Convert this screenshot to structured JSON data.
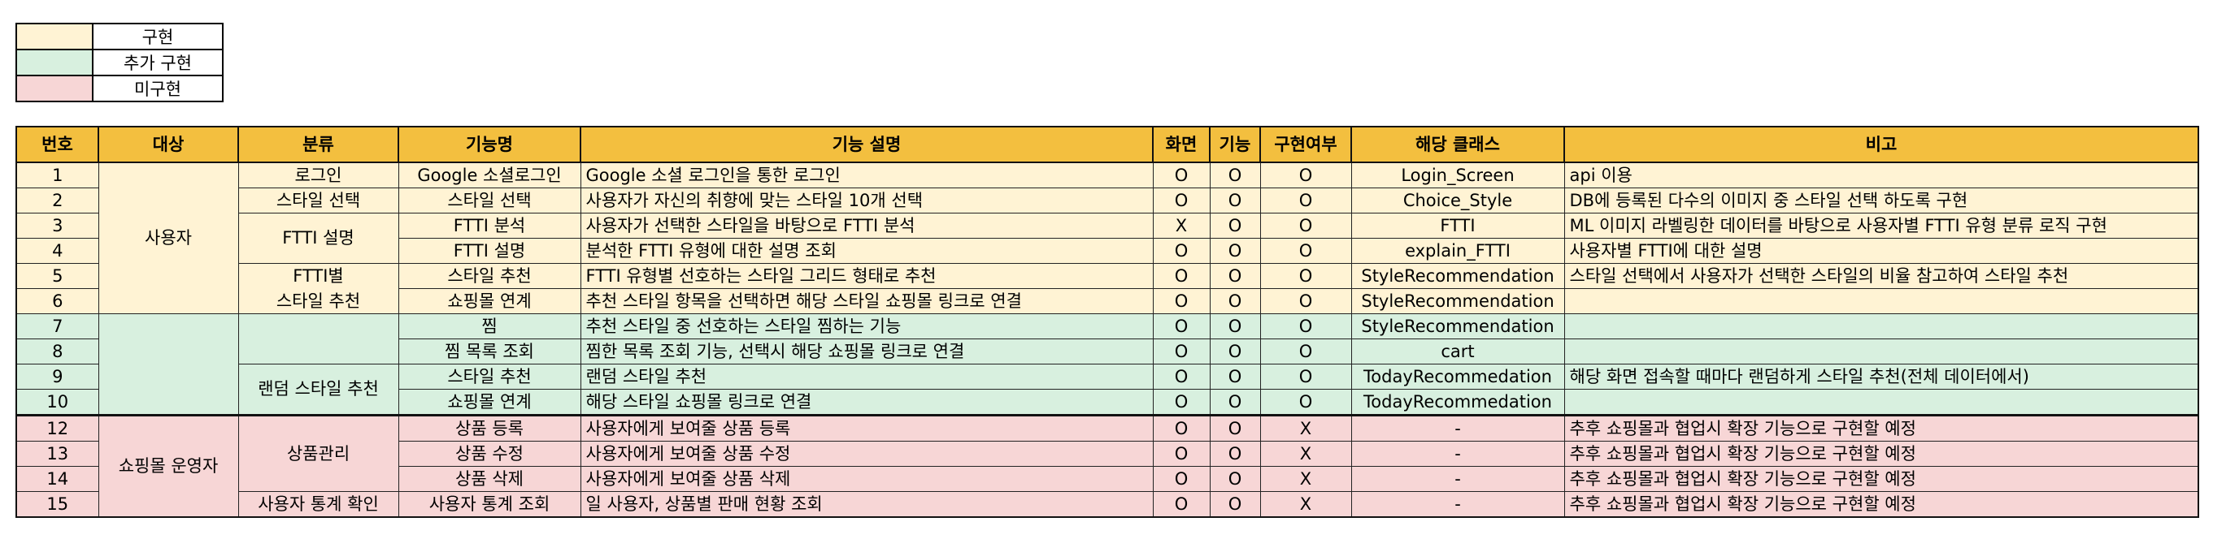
{
  "legend": {
    "items": [
      {
        "label": "구현",
        "color": "#fff3d4"
      },
      {
        "label": "추가 구현",
        "color": "#d8f0df"
      },
      {
        "label": "미구현",
        "color": "#f7d6d6"
      }
    ]
  },
  "colors": {
    "header": "#f3bf3f",
    "implemented": "#fff3d4",
    "added": "#d8f0df",
    "not_implemented": "#f7d6d6"
  },
  "table": {
    "headers": [
      "번호",
      "대상",
      "분류",
      "기능명",
      "기능 설명",
      "화면",
      "기능",
      "구현여부",
      "해당 클래스",
      "비고"
    ],
    "target": {
      "user": "사용자",
      "shop": "쇼핑몰 운영자"
    },
    "category": {
      "fttiDesc": "FTTI 설명",
      "fttiRec1": "FTTI별",
      "fttiRec2": "스타일 추천",
      "random": "랜덤 스타일 추천",
      "product": "상품관리",
      "stats": "사용자 통계 확인"
    },
    "rows": [
      {
        "no": "1",
        "cat": "로그인",
        "name": "Google 소셜로그인",
        "desc": "Google 소셜 로그인을 통한 로그인",
        "screen": "O",
        "func": "O",
        "impl": "O",
        "cls": "Login_Screen",
        "note": "api 이용"
      },
      {
        "no": "2",
        "cat": "스타일 선택",
        "name": "스타일 선택",
        "desc": "사용자가 자신의 취향에 맞는 스타일 10개 선택",
        "screen": "O",
        "func": "O",
        "impl": "O",
        "cls": "Choice_Style",
        "note": "DB에 등록된 다수의 이미지 중 스타일 선택 하도록 구현"
      },
      {
        "no": "3",
        "name": "FTTI 분석",
        "desc": "사용자가 선택한 스타일을 바탕으로 FTTI 분석",
        "screen": "X",
        "func": "O",
        "impl": "O",
        "cls": "FTTI",
        "note": "ML 이미지 라벨링한 데이터를 바탕으로 사용자별 FTTI 유형 분류 로직 구현"
      },
      {
        "no": "4",
        "name": "FTTI 설명",
        "desc": "분석한 FTTI 유형에 대한 설명 조회",
        "screen": "O",
        "func": "O",
        "impl": "O",
        "cls": "explain_FTTI",
        "note": "사용자별 FTTI에 대한 설명"
      },
      {
        "no": "5",
        "name": "스타일 추천",
        "desc": "FTTI 유형별 선호하는 스타일 그리드 형태로 추천",
        "screen": "O",
        "func": "O",
        "impl": "O",
        "cls": "StyleRecommendation",
        "note": "스타일 선택에서 사용자가 선택한 스타일의 비율 참고하여 스타일 추천"
      },
      {
        "no": "6",
        "name": "쇼핑몰 연계",
        "desc": "추천 스타일 항목을 선택하면 해당 스타일 쇼핑몰 링크로 연결",
        "screen": "O",
        "func": "O",
        "impl": "O",
        "cls": "StyleRecommendation",
        "note": ""
      },
      {
        "no": "7",
        "name": "찜",
        "desc": "추천 스타일 중 선호하는 스타일 찜하는 기능",
        "screen": "O",
        "func": "O",
        "impl": "O",
        "cls": "StyleRecommendation",
        "note": ""
      },
      {
        "no": "8",
        "name": "찜 목록 조회",
        "desc": "찜한 목록 조회 기능, 선택시 해당 쇼핑몰 링크로 연결",
        "screen": "O",
        "func": "O",
        "impl": "O",
        "cls": "cart",
        "note": ""
      },
      {
        "no": "9",
        "name": "스타일 추천",
        "desc": "랜덤 스타일 추천",
        "screen": "O",
        "func": "O",
        "impl": "O",
        "cls": "TodayRecommedation",
        "note": "해당 화면 접속할 때마다 랜덤하게 스타일 추천(전체 데이터에서)"
      },
      {
        "no": "10",
        "name": "쇼핑몰 연계",
        "desc": "해당 스타일 쇼핑몰 링크로 연결",
        "screen": "O",
        "func": "O",
        "impl": "O",
        "cls": "TodayRecommedation",
        "note": ""
      },
      {
        "no": "12",
        "name": "상품 등록",
        "desc": "사용자에게 보여줄 상품 등록",
        "screen": "O",
        "func": "O",
        "impl": "X",
        "cls": "-",
        "note": "추후 쇼핑몰과 협업시 확장 기능으로 구현할 예정"
      },
      {
        "no": "13",
        "name": "상품 수정",
        "desc": "사용자에게 보여줄 상품 수정",
        "screen": "O",
        "func": "O",
        "impl": "X",
        "cls": "-",
        "note": "추후 쇼핑몰과 협업시 확장 기능으로 구현할 예정"
      },
      {
        "no": "14",
        "name": "상품 삭제",
        "desc": "사용자에게 보여줄 상품 삭제",
        "screen": "O",
        "func": "O",
        "impl": "X",
        "cls": "-",
        "note": "추후 쇼핑몰과 협업시 확장 기능으로 구현할 예정"
      },
      {
        "no": "15",
        "cat": "사용자 통계 확인",
        "name": "사용자 통계 조회",
        "desc": "일 사용자, 상품별 판매 현황 조회",
        "screen": "O",
        "func": "O",
        "impl": "X",
        "cls": "-",
        "note": "추후 쇼핑몰과 협업시 확장 기능으로 구현할 예정"
      }
    ]
  }
}
